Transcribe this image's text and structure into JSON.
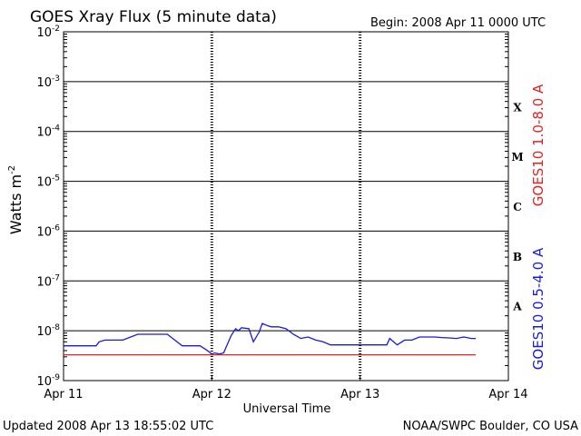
{
  "chart_data": {
    "type": "line",
    "title": "GOES Xray Flux (5 minute data)",
    "begin_label": "Begin:  2008 Apr 11 0000 UTC",
    "xlabel": "Universal Time",
    "ylabel_base": "Watts m",
    "ylabel_exp": "-2",
    "x_ticks": [
      "Apr 11",
      "Apr 12",
      "Apr 13",
      "Apr 14"
    ],
    "y_scale": "log",
    "ylim": [
      1e-09,
      0.01
    ],
    "y_ticks": [
      {
        "base": "10",
        "exp": "-2"
      },
      {
        "base": "10",
        "exp": "-3"
      },
      {
        "base": "10",
        "exp": "-4"
      },
      {
        "base": "10",
        "exp": "-5"
      },
      {
        "base": "10",
        "exp": "-6"
      },
      {
        "base": "10",
        "exp": "-7"
      },
      {
        "base": "10",
        "exp": "-8"
      },
      {
        "base": "10",
        "exp": "-9"
      }
    ],
    "flare_classes": [
      "X",
      "M",
      "C",
      "B",
      "A"
    ],
    "x_unit": "days since Apr 11 0000 UTC",
    "xlim": [
      0,
      3
    ],
    "grid": "horizontal at each decade, dotted vertical at day boundaries",
    "series": [
      {
        "name": "GOES10 0.5-4.0 A",
        "color": "#1a1adb",
        "x": [
          0,
          0.22,
          0.24,
          0.28,
          0.32,
          0.4,
          0.5,
          0.55,
          0.6,
          0.7,
          0.75,
          0.8,
          0.88,
          0.92,
          0.96,
          0.98,
          1.0,
          1.02,
          1.05,
          1.08,
          1.1,
          1.13,
          1.16,
          1.18,
          1.2,
          1.25,
          1.28,
          1.32,
          1.34,
          1.38,
          1.4,
          1.45,
          1.5,
          1.55,
          1.6,
          1.65,
          1.7,
          1.75,
          1.8,
          1.9,
          2.0,
          2.1,
          2.18,
          2.2,
          2.25,
          2.3,
          2.35,
          2.4,
          2.45,
          2.5,
          2.55,
          2.6,
          2.65,
          2.7,
          2.75,
          2.78
        ],
        "y": [
          5e-09,
          5e-09,
          6e-09,
          6.5e-09,
          6.5e-09,
          6.5e-09,
          8.5e-09,
          8.5e-09,
          8.5e-09,
          8.5e-09,
          6.5e-09,
          5e-09,
          5e-09,
          5e-09,
          4.2e-09,
          3.8e-09,
          3.4e-09,
          3.6e-09,
          3.4e-09,
          3.6e-09,
          5e-09,
          8e-09,
          1.1e-08,
          1e-08,
          1.15e-08,
          1.1e-08,
          6e-09,
          9.5e-09,
          1.4e-08,
          1.25e-08,
          1.2e-08,
          1.2e-08,
          1.1e-08,
          8.5e-09,
          7e-09,
          7.5e-09,
          6.5e-09,
          6e-09,
          5.2e-09,
          5.2e-09,
          5.2e-09,
          5.2e-09,
          5.2e-09,
          7e-09,
          5.2e-09,
          6.5e-09,
          6.5e-09,
          7.5e-09,
          7.5e-09,
          7.5e-09,
          7.3e-09,
          7.2e-09,
          7e-09,
          7.5e-09,
          7e-09,
          7e-09
        ]
      },
      {
        "name": "GOES10 1.0-8.0 A",
        "color": "#e02424",
        "x": [
          0,
          2.78
        ],
        "y": [
          3.3e-09,
          3.3e-09
        ]
      }
    ]
  },
  "footer": {
    "updated": "Updated 2008 Apr 13 18:55:02 UTC",
    "credit": "NOAA/SWPC Boulder, CO USA"
  }
}
